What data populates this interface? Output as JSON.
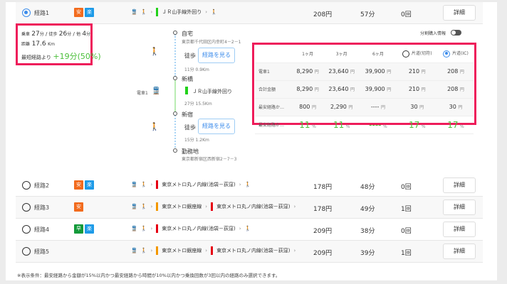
{
  "routes": [
    {
      "label": "経路1",
      "selected": true,
      "badges": [
        {
          "text": "安",
          "color": "#f26b1d"
        },
        {
          "text": "楽",
          "color": "#1e9be8"
        }
      ],
      "segments": [
        {
          "name": "ＪＲ山手線外回り",
          "color": "#22d11a"
        }
      ],
      "end_walk": true,
      "price": "208円",
      "time": "57分",
      "transfers": "0回"
    },
    {
      "label": "経路2",
      "selected": false,
      "badges": [
        {
          "text": "安",
          "color": "#f26b1d"
        },
        {
          "text": "楽",
          "color": "#1e9be8"
        }
      ],
      "segments": [
        {
          "name": "東京メトロ丸ノ内線(池袋－荻窪)",
          "color": "#e60012"
        }
      ],
      "end_walk": true,
      "price": "178円",
      "time": "48分",
      "transfers": "0回"
    },
    {
      "label": "経路3",
      "selected": false,
      "badges": [
        {
          "text": "安",
          "color": "#f26b1d"
        }
      ],
      "segments": [
        {
          "name": "東京メトロ銀座線",
          "color": "#f39700"
        },
        {
          "name": "東京メトロ丸ノ内線(池袋－荻窪)",
          "color": "#e60012"
        }
      ],
      "end_walk": false,
      "price": "178円",
      "time": "49分",
      "transfers": "1回"
    },
    {
      "label": "経路4",
      "selected": false,
      "badges": [
        {
          "text": "早",
          "color": "#139a3a"
        },
        {
          "text": "楽",
          "color": "#1e9be8"
        }
      ],
      "segments": [
        {
          "name": "東京メトロ丸ノ内線(池袋－荻窪)",
          "color": "#e60012"
        }
      ],
      "end_walk": true,
      "price": "209円",
      "time": "38分",
      "transfers": "0回"
    },
    {
      "label": "経路5",
      "selected": false,
      "badges": [],
      "segments": [
        {
          "name": "東京メトロ銀座線",
          "color": "#f39700"
        },
        {
          "name": "東京メトロ丸ノ内線(池袋－荻窪)",
          "color": "#e60012"
        }
      ],
      "end_walk": false,
      "price": "209円",
      "time": "39分",
      "transfers": "1回"
    }
  ],
  "detail_label": "詳細",
  "summary": {
    "ride_label": "乗車",
    "ride": "27",
    "walk_label": "徒歩",
    "walk": "26",
    "other_label": "他",
    "other": "4",
    "min": "分",
    "dist_label": "距離",
    "dist": "17.6",
    "km": "Km",
    "diff_label": "最短経路より",
    "diff": "+19分(50%)"
  },
  "timeline": {
    "stations": [
      {
        "name": "自宅",
        "addr": "東京都千代田区内幸町4－2－1"
      },
      {
        "name": "新橋",
        "addr": ""
      },
      {
        "name": "新宿",
        "addr": ""
      },
      {
        "name": "勤務地",
        "addr": "東京都新宿区西新宿2－7－3"
      }
    ],
    "walk1": {
      "label": "徒歩",
      "button": "経路を見る",
      "info": "11分 0.9Km"
    },
    "train": {
      "side_label": "電車1",
      "line": "ＪＲ山手線外回り",
      "line_color": "#22d11a",
      "info": "27分 15.5Km"
    },
    "walk2": {
      "label": "徒歩",
      "button": "経路を見る",
      "info": "15分 1.2Km"
    }
  },
  "split_toggle": {
    "label": "分割購入情報",
    "on": false
  },
  "fare_table": {
    "headers": [
      "1ヶ月",
      "3ヶ月",
      "6ヶ月",
      "片道(切符)",
      "片道(IC)"
    ],
    "selected_oneway": "片道(IC)",
    "rows": [
      {
        "label": "電車1",
        "values": [
          "8,290",
          "23,640",
          "39,900",
          "210",
          "208"
        ],
        "unit": "円"
      },
      {
        "label": "合計金額",
        "values": [
          "8,290",
          "23,640",
          "39,900",
          "210",
          "208"
        ],
        "unit": "円"
      },
      {
        "label": "最安経路か…",
        "values": [
          "800",
          "2,290",
          "----",
          "30",
          "30"
        ],
        "unit": "円"
      },
      {
        "label": "最安経路か…",
        "values": [
          "11",
          "11",
          "----",
          "17",
          "17"
        ],
        "unit": "%"
      }
    ]
  },
  "footnote": "※表示条件：最安経路から金額が15%以内かつ最安経路から時間が10%以内かつ乗換回数が3回以内の経路のみ選択できます。"
}
